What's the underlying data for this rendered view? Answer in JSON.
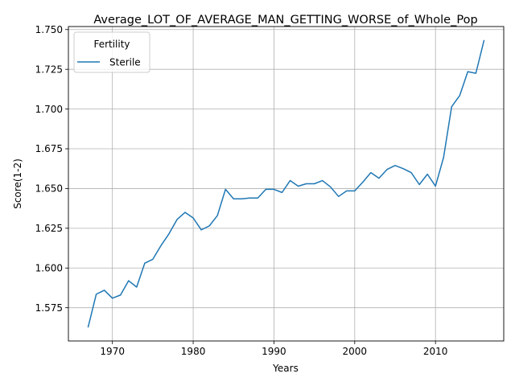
{
  "chart_data": {
    "type": "line",
    "title": "Average_LOT_OF_AVERAGE_MAN_GETTING_WORSE_of_Whole_Pop",
    "xlabel": "Years",
    "ylabel": "Score(1-2)",
    "xlim": [
      1964.55,
      2018.45
    ],
    "ylim": [
      1.5541,
      1.7519
    ],
    "xticks": [
      1970,
      1980,
      1990,
      2000,
      2010
    ],
    "xtick_labels": [
      "1970",
      "1980",
      "1990",
      "2000",
      "2010"
    ],
    "yticks": [
      1.575,
      1.6,
      1.625,
      1.65,
      1.675,
      1.7,
      1.725,
      1.75
    ],
    "ytick_labels": [
      "1.575",
      "1.600",
      "1.625",
      "1.650",
      "1.675",
      "1.700",
      "1.725",
      "1.750"
    ],
    "grid": true,
    "legend": {
      "title": "Fertility",
      "placement": "top-left"
    },
    "series": [
      {
        "name": "Sterile",
        "color": "#1f77b4",
        "x": [
          1967,
          1968,
          1969,
          1970,
          1971,
          1972,
          1973,
          1974,
          1975,
          1976,
          1977,
          1978,
          1979,
          1980,
          1981,
          1982,
          1983,
          1984,
          1985,
          1986,
          1987,
          1988,
          1989,
          1990,
          1991,
          1992,
          1993,
          1994,
          1995,
          1996,
          1997,
          1998,
          1999,
          2000,
          2001,
          2002,
          2003,
          2004,
          2005,
          2006,
          2007,
          2008,
          2009,
          2010,
          2011,
          2012,
          2013,
          2014,
          2015,
          2016
        ],
        "y": [
          1.563,
          1.5835,
          1.586,
          1.581,
          1.583,
          1.592,
          1.588,
          1.603,
          1.6055,
          1.614,
          1.6215,
          1.6305,
          1.635,
          1.6315,
          1.624,
          1.6265,
          1.633,
          1.6495,
          1.6435,
          1.6435,
          1.644,
          1.644,
          1.6495,
          1.6495,
          1.6475,
          1.655,
          1.6515,
          1.653,
          1.653,
          1.655,
          1.651,
          1.645,
          1.6485,
          1.6485,
          1.654,
          1.66,
          1.6565,
          1.662,
          1.6645,
          1.6625,
          1.66,
          1.6525,
          1.659,
          1.6515,
          1.6695,
          1.7015,
          1.7085,
          1.7235,
          1.7225,
          1.743
        ]
      }
    ]
  }
}
